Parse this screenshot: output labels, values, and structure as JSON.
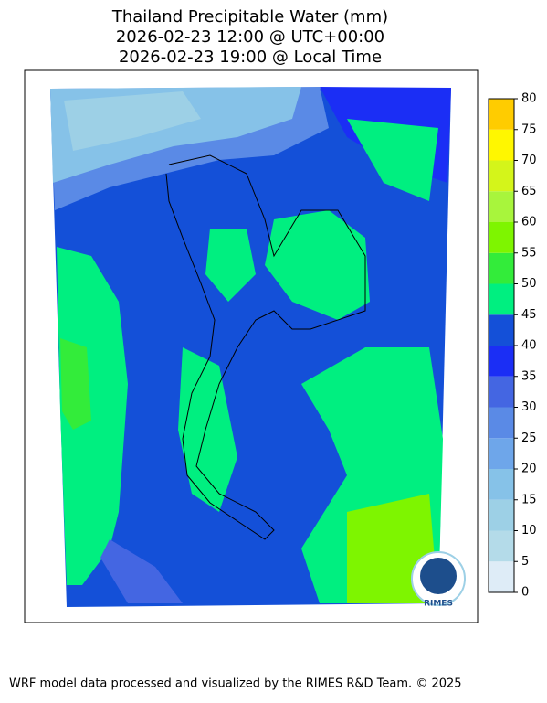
{
  "title": [
    "Thailand Precipitable Water (mm)",
    "2026-02-23 12:00 @ UTC+00:00",
    "2026-02-23 19:00 @ Local Time"
  ],
  "colorbar": {
    "lim": [
      0,
      80
    ],
    "ticks": [
      0,
      5,
      10,
      15,
      20,
      25,
      30,
      35,
      40,
      45,
      50,
      55,
      60,
      65,
      70,
      75,
      80
    ],
    "colors": [
      "#deecf7",
      "#b4dbe9",
      "#9dd0e6",
      "#86c2e8",
      "#6ea6ea",
      "#5a8ae6",
      "#4466e2",
      "#1b2ef5",
      "#1450d8",
      "#00ef80",
      "#33ec3a",
      "#7ef500",
      "#a8f53c",
      "#d4f51a",
      "#fff700",
      "#ffcc00"
    ]
  },
  "logo": "RIMES",
  "footer": "WRF model data processed and visualized by the RIMES R&D Team. © 2025"
}
